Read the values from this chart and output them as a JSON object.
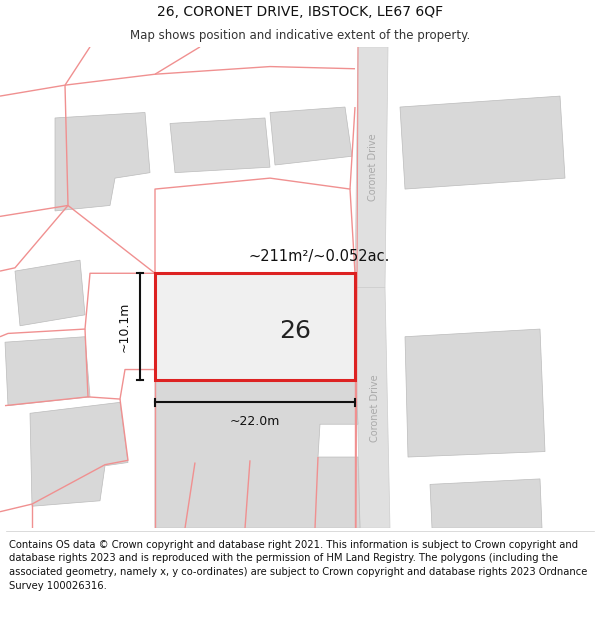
{
  "title": "26, CORONET DRIVE, IBSTOCK, LE67 6QF",
  "subtitle": "Map shows position and indicative extent of the property.",
  "footer": "Contains OS data © Crown copyright and database right 2021. This information is subject to Crown copyright and database rights 2023 and is reproduced with the permission of HM Land Registry. The polygons (including the associated geometry, namely x, y co-ordinates) are subject to Crown copyright and database rights 2023 Ordnance Survey 100026316.",
  "bg_color": "#ffffff",
  "road_label": "Coronet Drive",
  "plot_number": "26",
  "area_label": "~211m²/~0.052ac.",
  "width_label": "~22.0m",
  "height_label": "~10.1m",
  "red_color": "#dd2222",
  "pink_color": "#f09090",
  "gray_building": "#d8d8d8",
  "road_gray": "#e0e0e0",
  "title_fontsize": 10,
  "subtitle_fontsize": 8.5,
  "footer_fontsize": 7.2
}
